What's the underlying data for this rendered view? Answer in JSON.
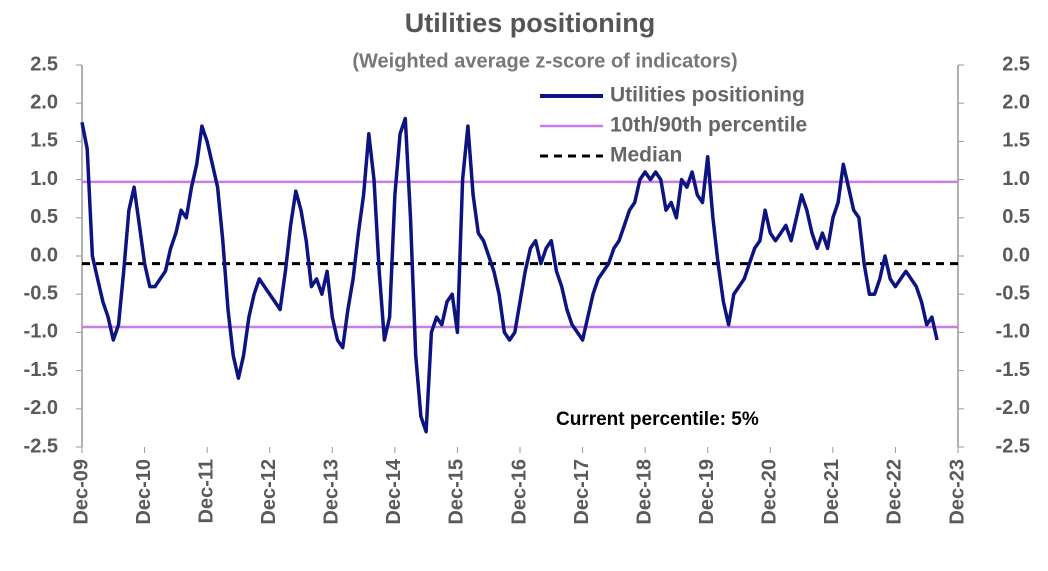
{
  "chart_data": {
    "type": "line",
    "title": "Utilities positioning",
    "subtitle": "(Weighted average z-score of indicators)",
    "annotation": "Current percentile: 5%",
    "x": [
      "Dec-09",
      "Jan-10",
      "Feb-10",
      "Mar-10",
      "Apr-10",
      "May-10",
      "Jun-10",
      "Jul-10",
      "Aug-10",
      "Sep-10",
      "Oct-10",
      "Nov-10",
      "Dec-10",
      "Jan-11",
      "Feb-11",
      "Mar-11",
      "Apr-11",
      "May-11",
      "Jun-11",
      "Jul-11",
      "Aug-11",
      "Sep-11",
      "Oct-11",
      "Nov-11",
      "Dec-11",
      "Jan-12",
      "Feb-12",
      "Mar-12",
      "Apr-12",
      "May-12",
      "Jun-12",
      "Jul-12",
      "Aug-12",
      "Sep-12",
      "Oct-12",
      "Nov-12",
      "Dec-12",
      "Jan-13",
      "Feb-13",
      "Mar-13",
      "Apr-13",
      "May-13",
      "Jun-13",
      "Jul-13",
      "Aug-13",
      "Sep-13",
      "Oct-13",
      "Nov-13",
      "Dec-13",
      "Jan-14",
      "Feb-14",
      "Mar-14",
      "Apr-14",
      "May-14",
      "Jun-14",
      "Jul-14",
      "Aug-14",
      "Sep-14",
      "Oct-14",
      "Nov-14",
      "Dec-14",
      "Jan-15",
      "Feb-15",
      "Mar-15",
      "Apr-15",
      "May-15",
      "Jun-15",
      "Jul-15",
      "Aug-15",
      "Sep-15",
      "Oct-15",
      "Nov-15",
      "Dec-15",
      "Jan-16",
      "Feb-16",
      "Mar-16",
      "Apr-16",
      "May-16",
      "Jun-16",
      "Jul-16",
      "Aug-16",
      "Sep-16",
      "Oct-16",
      "Nov-16",
      "Dec-16",
      "Jan-17",
      "Feb-17",
      "Mar-17",
      "Apr-17",
      "May-17",
      "Jun-17",
      "Jul-17",
      "Aug-17",
      "Sep-17",
      "Oct-17",
      "Nov-17",
      "Dec-17",
      "Jan-18",
      "Feb-18",
      "Mar-18",
      "Apr-18",
      "May-18",
      "Jun-18",
      "Jul-18",
      "Aug-18",
      "Sep-18",
      "Oct-18",
      "Nov-18",
      "Dec-18",
      "Jan-19",
      "Feb-19",
      "Mar-19",
      "Apr-19",
      "May-19",
      "Jun-19",
      "Jul-19",
      "Aug-19",
      "Sep-19",
      "Oct-19",
      "Nov-19",
      "Dec-19",
      "Jan-20",
      "Feb-20",
      "Mar-20",
      "Apr-20",
      "May-20",
      "Jun-20",
      "Jul-20",
      "Aug-20",
      "Sep-20",
      "Oct-20",
      "Nov-20",
      "Dec-20",
      "Jan-21",
      "Feb-21",
      "Mar-21",
      "Apr-21",
      "May-21",
      "Jun-21",
      "Jul-21",
      "Aug-21",
      "Sep-21",
      "Oct-21",
      "Nov-21",
      "Dec-21",
      "Jan-22",
      "Feb-22",
      "Mar-22",
      "Apr-22",
      "May-22",
      "Jun-22",
      "Jul-22",
      "Aug-22",
      "Sep-22",
      "Oct-22",
      "Nov-22",
      "Dec-22",
      "Jan-23",
      "Feb-23",
      "Mar-23",
      "Apr-23",
      "May-23",
      "Jun-23",
      "Jul-23",
      "Aug-23"
    ],
    "series": [
      {
        "name": "Utilities positioning",
        "color": "#0d1380",
        "values": [
          1.75,
          1.4,
          0.0,
          -0.3,
          -0.6,
          -0.8,
          -1.1,
          -0.9,
          -0.2,
          0.6,
          0.9,
          0.4,
          -0.1,
          -0.4,
          -0.4,
          -0.3,
          -0.2,
          0.1,
          0.3,
          0.6,
          0.5,
          0.9,
          1.2,
          1.7,
          1.5,
          1.2,
          0.9,
          0.2,
          -0.7,
          -1.3,
          -1.6,
          -1.3,
          -0.8,
          -0.5,
          -0.3,
          -0.4,
          -0.5,
          -0.6,
          -0.7,
          -0.2,
          0.4,
          0.85,
          0.6,
          0.2,
          -0.4,
          -0.3,
          -0.5,
          -0.2,
          -0.8,
          -1.1,
          -1.2,
          -0.7,
          -0.3,
          0.3,
          0.8,
          1.6,
          1.0,
          -0.2,
          -1.1,
          -0.8,
          0.8,
          1.6,
          1.8,
          0.5,
          -1.3,
          -2.1,
          -2.3,
          -1.0,
          -0.8,
          -0.9,
          -0.6,
          -0.5,
          -1.0,
          1.0,
          1.7,
          0.8,
          0.3,
          0.2,
          0.0,
          -0.2,
          -0.5,
          -1.0,
          -1.1,
          -1.0,
          -0.6,
          -0.2,
          0.1,
          0.2,
          -0.1,
          0.1,
          0.2,
          -0.2,
          -0.4,
          -0.7,
          -0.9,
          -1.0,
          -1.1,
          -0.8,
          -0.5,
          -0.3,
          -0.2,
          -0.1,
          0.1,
          0.2,
          0.4,
          0.6,
          0.7,
          1.0,
          1.1,
          1.0,
          1.1,
          1.0,
          0.6,
          0.7,
          0.5,
          1.0,
          0.9,
          1.1,
          0.8,
          0.7,
          1.3,
          0.5,
          -0.1,
          -0.6,
          -0.9,
          -0.5,
          -0.4,
          -0.3,
          -0.1,
          0.1,
          0.2,
          0.6,
          0.3,
          0.2,
          0.3,
          0.4,
          0.2,
          0.5,
          0.8,
          0.6,
          0.3,
          0.1,
          0.3,
          0.1,
          0.5,
          0.7,
          1.2,
          0.9,
          0.6,
          0.5,
          -0.1,
          -0.5,
          -0.5,
          -0.3,
          0.0,
          -0.3,
          -0.4,
          -0.3,
          -0.2,
          -0.3,
          -0.4,
          -0.6,
          -0.9,
          -0.8,
          -1.1
        ]
      }
    ],
    "reference_lines": [
      {
        "name": "10th/90th percentile",
        "color": "#c77dea",
        "values": [
          0.97,
          -0.93
        ]
      },
      {
        "name": "Median",
        "color": "#000000",
        "dashed": true,
        "values": [
          -0.1
        ]
      }
    ],
    "xticks": [
      "Dec-09",
      "Dec-10",
      "Dec-11",
      "Dec-12",
      "Dec-13",
      "Dec-14",
      "Dec-15",
      "Dec-16",
      "Dec-17",
      "Dec-18",
      "Dec-19",
      "Dec-20",
      "Dec-21",
      "Dec-22",
      "Dec-23"
    ],
    "ylim": [
      -2.5,
      2.5
    ],
    "yticks": [
      -2.5,
      {
        "value": -2,
        "label": "-2.0"
      },
      -1.5,
      {
        "value": -1,
        "label": "-1.0"
      },
      -0.5,
      {
        "value": 0,
        "label": "0.0"
      },
      0.5,
      {
        "value": 1,
        "label": "1.0"
      },
      1.5,
      {
        "value": 2,
        "label": "2.0"
      },
      2.5
    ],
    "secondary_axis_mirrors": true
  }
}
